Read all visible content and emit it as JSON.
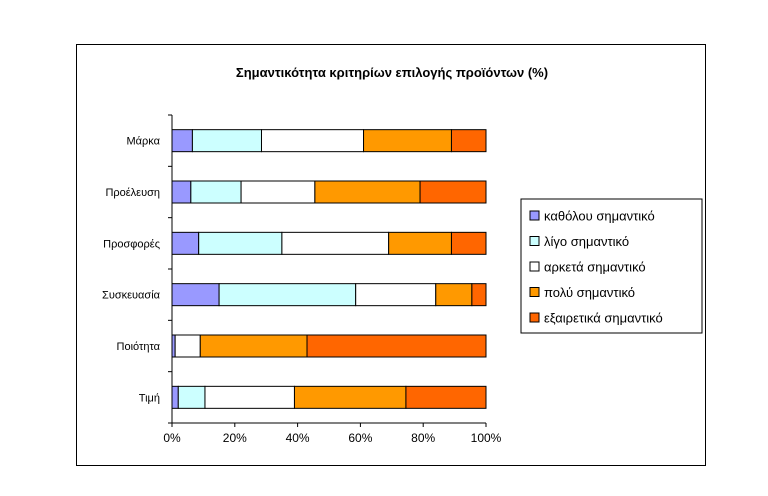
{
  "chart_data": {
    "type": "bar",
    "orientation": "horizontal",
    "stacked": "percent",
    "title": "Σημαντικότητα κριτηρίων επιλογής προϊόντων (%)",
    "xlabel": "",
    "ylabel": "",
    "xlim": [
      0,
      100
    ],
    "xticks": [
      "0%",
      "20%",
      "40%",
      "60%",
      "80%",
      "100%"
    ],
    "categories": [
      "Μάρκα",
      "Προέλευση",
      "Προσφορές",
      "Συσκευασία",
      "Ποιότητα",
      "Τιμή"
    ],
    "series": [
      {
        "name": "καθόλου σημαντικό",
        "color": "#9999ff",
        "values": [
          6.5,
          6,
          8.5,
          15,
          1,
          2
        ]
      },
      {
        "name": "λίγο σημαντικό",
        "color": "#ccffff",
        "values": [
          22,
          16,
          26.5,
          43.5,
          0,
          8.5
        ]
      },
      {
        "name": "αρκετά σημαντικό",
        "color": "#ffffff",
        "values": [
          32.5,
          23.5,
          34,
          25.5,
          8,
          28.5
        ]
      },
      {
        "name": "πολύ σημαντικό",
        "color": "#ff9900",
        "values": [
          28,
          33.5,
          20,
          11.5,
          34,
          35.5
        ]
      },
      {
        "name": "εξαιρετικά σημαντικό",
        "color": "#ff6600",
        "values": [
          11,
          21,
          11,
          4.5,
          57,
          25.5
        ]
      }
    ],
    "grid": false,
    "legend_position": "right"
  }
}
